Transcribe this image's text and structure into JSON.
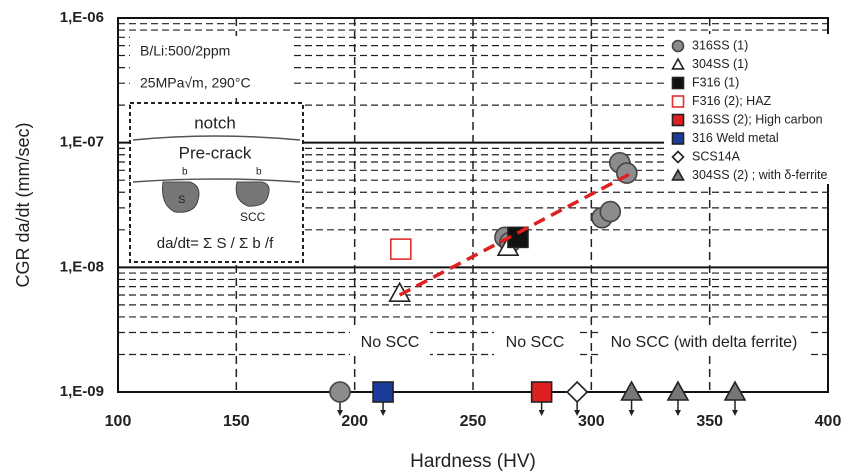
{
  "chart_data": {
    "type": "scatter",
    "x_label": "Hardness (HV)",
    "y_label": "CGR da/dt (mm/sec)",
    "log_y": true,
    "grid": true,
    "minor_grid": true,
    "legend": "upper right",
    "xlim": [
      100,
      400
    ],
    "xticks": [
      100,
      150,
      200,
      250,
      300,
      350,
      400
    ],
    "ylim": [
      1e-09,
      1e-06
    ],
    "yticks": [
      {
        "value": 1e-09,
        "label": "1,E-09"
      },
      {
        "value": 1e-08,
        "label": "1,E-08"
      },
      {
        "value": 1e-07,
        "label": "1,E-07"
      },
      {
        "value": 1e-06,
        "label": "1,E-06"
      }
    ],
    "series": [
      {
        "name": "316SS (1)",
        "color": "#8c8c8c",
        "marker": "circle",
        "filled": true,
        "x": [
          193.8,
          263.5,
          265.6,
          312,
          315,
          304.5,
          308
        ],
        "y": [
          1e-09,
          1.74e-08,
          1.58e-08,
          6.9e-08,
          5.7e-08,
          2.5e-08,
          2.8e-08
        ]
      },
      {
        "name": "304SS (1)",
        "color": "#222222",
        "marker": "triangle",
        "filled": false,
        "x": [
          264.8,
          219
        ],
        "y": [
          1.45e-08,
          6.2e-09
        ]
      },
      {
        "name": "F316 (1)",
        "color": "#111111",
        "marker": "square",
        "filled": true,
        "x": [
          269
        ],
        "y": [
          1.74e-08
        ]
      },
      {
        "name": "F316 (2); HAZ",
        "color": "#e03030",
        "marker": "square",
        "filled": false,
        "x": [
          219.5
        ],
        "y": [
          1.4e-08
        ]
      },
      {
        "name": "316SS (2); High carbon",
        "color": "#e02020",
        "marker": "square",
        "filled": true,
        "x": [
          279
        ],
        "y": [
          1e-09
        ]
      },
      {
        "name": "316 Weld metal",
        "color": "#1c3c9c",
        "marker": "square",
        "filled": true,
        "x": [
          212
        ],
        "y": [
          1e-09
        ]
      },
      {
        "name": "SCS14A",
        "color": "#222222",
        "marker": "diamond",
        "filled": false,
        "x": [
          294
        ],
        "y": [
          1e-09
        ]
      },
      {
        "name": "304SS (2) ; with δ-ferrite",
        "color": "#777777",
        "marker": "triangle",
        "filled": true,
        "x": [
          317,
          336.6,
          360.7
        ],
        "y": [
          1e-09,
          1e-09,
          1e-09
        ]
      }
    ],
    "trend_line": {
      "color": "#e02020",
      "x": [
        219,
        317
      ],
      "y": [
        6e-09,
        5.7e-08
      ]
    },
    "annotations": [
      "B/Li:500/2ppm",
      "25MPa√m, 290°C",
      "notch",
      "Pre-crack",
      "b",
      "b",
      "S",
      "SCC",
      "da/dt= Σ S / Σ b /f",
      "No SCC",
      "No SCC",
      "No SCC (with delta ferrite)"
    ]
  }
}
